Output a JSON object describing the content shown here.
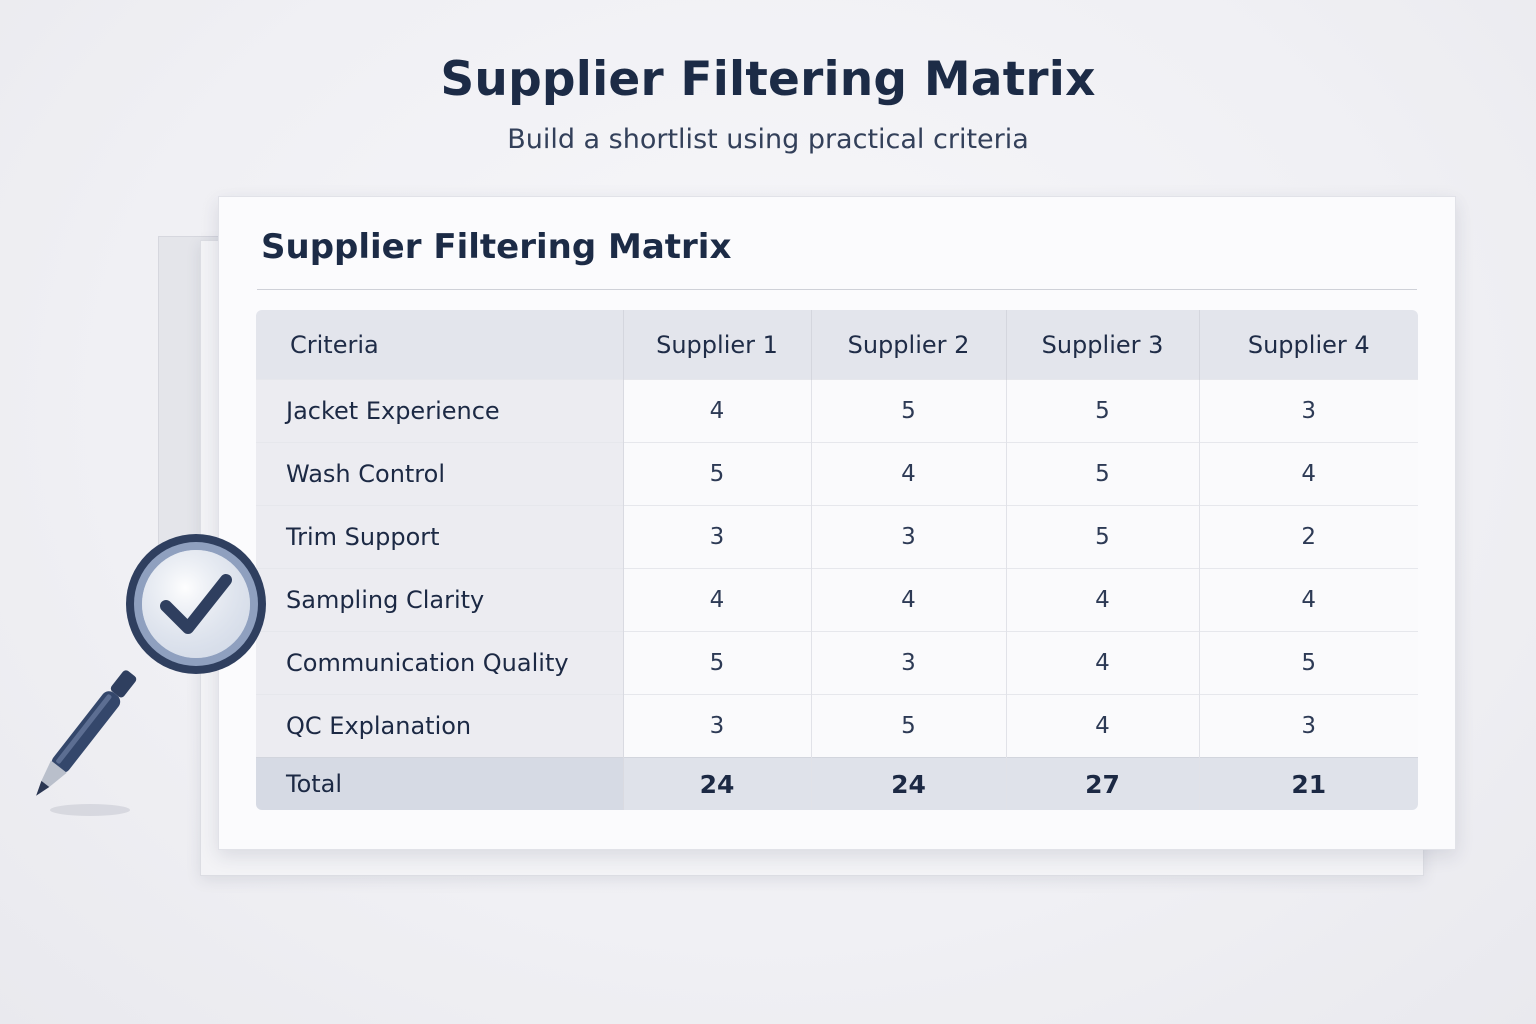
{
  "header": {
    "title": "Supplier Filtering Matrix",
    "subtitle": "Build a shortlist using practical criteria"
  },
  "card": {
    "title": "Supplier Filtering Matrix"
  },
  "matrix": {
    "columns": [
      "Criteria",
      "Supplier 1",
      "Supplier 2",
      "Supplier 3",
      "Supplier 4"
    ],
    "rows": [
      {
        "criterion": "Jacket Experience",
        "scores": [
          "4",
          "5",
          "5",
          "3"
        ]
      },
      {
        "criterion": "Wash Control",
        "scores": [
          "5",
          "4",
          "5",
          "4"
        ]
      },
      {
        "criterion": "Trim Support",
        "scores": [
          "3",
          "3",
          "5",
          "2"
        ]
      },
      {
        "criterion": "Sampling Clarity",
        "scores": [
          "4",
          "4",
          "4",
          "4"
        ]
      },
      {
        "criterion": "Communication Quality",
        "scores": [
          "5",
          "3",
          "4",
          "5"
        ]
      },
      {
        "criterion": "QC Explanation",
        "scores": [
          "3",
          "5",
          "4",
          "3"
        ]
      }
    ],
    "total": {
      "label": "Total",
      "scores": [
        "24",
        "24",
        "27",
        "21"
      ]
    }
  },
  "decoration": {
    "icon": "magnifying-glass-checkmark-icon",
    "accent_color": "#2f4063"
  }
}
